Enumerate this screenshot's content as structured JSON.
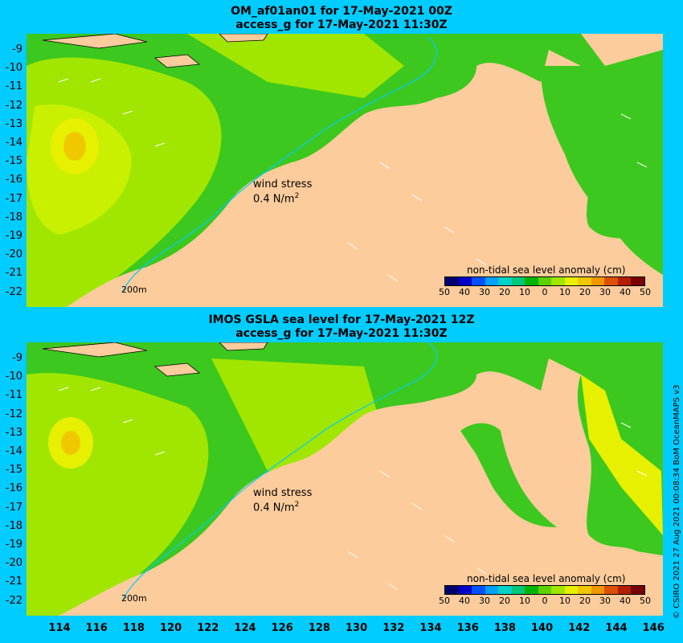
{
  "panels": [
    {
      "title_line1": "OM_af01an01 for 17-May-2021 00Z",
      "title_line2": "access_g for 17-May-2021 11:30Z"
    },
    {
      "title_line1": "IMOS GSLA sea level  for 17-May-2021 12Z",
      "title_line2": "access_g for 17-May-2021 11:30Z"
    }
  ],
  "y_ticks": [
    "-9",
    "-10",
    "-11",
    "-12",
    "-13",
    "-14",
    "-15",
    "-16",
    "-17",
    "-18",
    "-19",
    "-20",
    "-21",
    "-22"
  ],
  "x_ticks": [
    "114",
    "116",
    "118",
    "120",
    "122",
    "124",
    "126",
    "128",
    "130",
    "132",
    "134",
    "136",
    "138",
    "140",
    "142",
    "144",
    "146"
  ],
  "wind_label": "wind stress",
  "wind_scale": "0.4 N/m",
  "wind_scale_sup": "2",
  "isobath": "200m",
  "colorbar": {
    "title": "non-tidal sea level anomaly (cm)",
    "ticks": [
      "50",
      "40",
      "30",
      "20",
      "10",
      "0",
      "10",
      "20",
      "30",
      "40",
      "50"
    ],
    "colors": [
      "#00006e",
      "#0000c8",
      "#0050ff",
      "#00a0ff",
      "#00d2c8",
      "#00c878",
      "#00b400",
      "#5ad200",
      "#a0e600",
      "#e6f000",
      "#f0c800",
      "#f09600",
      "#dc5000",
      "#b41e00",
      "#780000"
    ]
  },
  "colors": {
    "land": "#fccc9c",
    "background": "#00ccff",
    "ocean_green": "#3cc81e",
    "ocean_yellow": "#c8f000"
  },
  "credit": "© CSIRO 2021   27 Aug 2021 00:08:34 BoM OceanMAPS v3"
}
